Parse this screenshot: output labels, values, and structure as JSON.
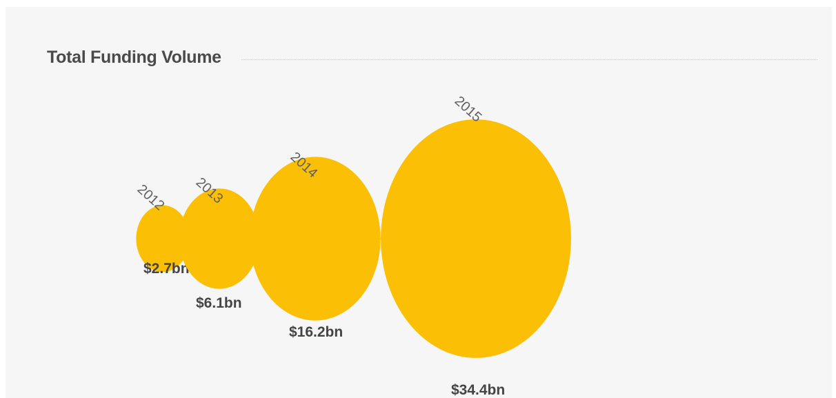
{
  "chart_data": {
    "type": "bubble",
    "title": "Total Funding Volume",
    "unit": "$bn",
    "categories": [
      "2012",
      "2013",
      "2014",
      "2015"
    ],
    "values": [
      2.7,
      6.1,
      16.2,
      34.4
    ],
    "value_labels": [
      "$2.7bn",
      "$6.1bn",
      "$16.2bn",
      "$34.4bn"
    ],
    "bubble_color": "#fbbf05",
    "connector_color": "#b9b9b9",
    "grid": false,
    "legend": "none"
  }
}
